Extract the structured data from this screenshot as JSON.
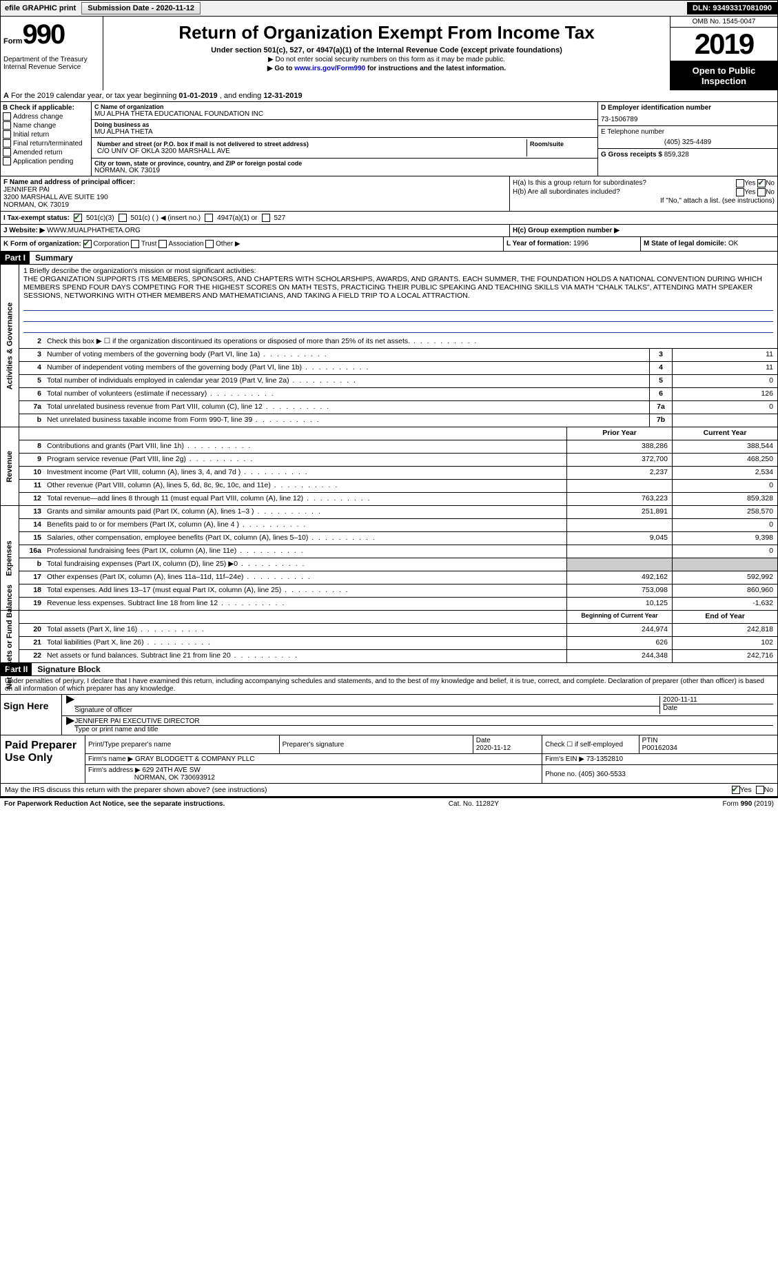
{
  "topbar": {
    "efile": "efile GRAPHIC print",
    "submission_label": "Submission Date - ",
    "submission_date": "2020-11-12",
    "dln_label": "DLN: ",
    "dln": "93493317081090"
  },
  "header": {
    "form_label": "Form",
    "form_number": "990",
    "dept": "Department of the Treasury\nInternal Revenue Service",
    "title": "Return of Organization Exempt From Income Tax",
    "subtitle": "Under section 501(c), 527, or 4947(a)(1) of the Internal Revenue Code (except private foundations)",
    "note1": "▶ Do not enter social security numbers on this form as it may be made public.",
    "note2_pre": "▶ Go to ",
    "note2_link": "www.irs.gov/Form990",
    "note2_post": " for instructions and the latest information.",
    "omb": "OMB No. 1545-0047",
    "year": "2019",
    "open_public": "Open to Public Inspection"
  },
  "row_a": {
    "prefix": "A",
    "text": " For the 2019 calendar year, or tax year beginning ",
    "begin": "01-01-2019",
    "mid": "   , and ending ",
    "end": "12-31-2019"
  },
  "col_b": {
    "label": "B Check if applicable:",
    "items": [
      "Address change",
      "Name change",
      "Initial return",
      "Final return/terminated",
      "Amended return",
      "Application pending"
    ]
  },
  "org": {
    "c_label": "C Name of organization",
    "name": "MU ALPHA THETA EDUCATIONAL FOUNDATION INC",
    "dba_label": "Doing business as",
    "dba": "MU ALPHA THETA",
    "addr_label": "Number and street (or P.O. box if mail is not delivered to street address)",
    "addr": "C/O UNIV OF OKLA 3200 MARSHALL AVE",
    "room_label": "Room/suite",
    "city_label": "City or town, state or province, country, and ZIP or foreign postal code",
    "city": "NORMAN, OK  73019"
  },
  "right": {
    "d_label": "D Employer identification number",
    "ein": "73-1506789",
    "e_label": "E Telephone number",
    "phone": "(405) 325-4489",
    "g_label": "G Gross receipts $ ",
    "gross": "859,328"
  },
  "officer": {
    "f_label": "F  Name and address of principal officer:",
    "name": "JENNIFER PAI",
    "addr1": "3200 MARSHALL AVE SUITE 190",
    "addr2": "NORMAN, OK  73019"
  },
  "h": {
    "ha_label": "H(a)  Is this a group return for subordinates?",
    "hb_label": "H(b)  Are all subordinates included?",
    "hb_note": "If \"No,\" attach a list. (see instructions)",
    "hc_label": "H(c)  Group exemption number ▶",
    "yes": "Yes",
    "no": "No"
  },
  "row_i_label": "I   Tax-exempt status:",
  "row_i": {
    "a": "501(c)(3)",
    "b": "501(c) (   ) ◀ (insert no.)",
    "c": "4947(a)(1) or",
    "d": "527"
  },
  "row_j": {
    "label": "J   Website: ▶",
    "val": "WWW.MUALPHATHETA.ORG"
  },
  "row_k": {
    "label": "K Form of organization:",
    "opts": [
      "Corporation",
      "Trust",
      "Association",
      "Other ▶"
    ],
    "l_label": "L Year of formation: ",
    "l_val": "1996",
    "m_label": "M State of legal domicile: ",
    "m_val": "OK"
  },
  "parts": {
    "p1": "Part I",
    "p1_title": "Summary",
    "p2": "Part II",
    "p2_title": "Signature Block"
  },
  "mission": {
    "label": "1   Briefly describe the organization's mission or most significant activities:",
    "text": "THE ORGANIZATION SUPPORTS ITS MEMBERS, SPONSORS, AND CHAPTERS WITH SCHOLARSHIPS, AWARDS, AND GRANTS. EACH SUMMER, THE FOUNDATION HOLDS A NATIONAL CONVENTION DURING WHICH MEMBERS SPEND FOUR DAYS COMPETING FOR THE HIGHEST SCORES ON MATH TESTS, PRACTICING THEIR PUBLIC SPEAKING AND TEACHING SKILLS VIA MATH \"CHALK TALKS\", ATTENDING MATH SPEAKER SESSIONS, NETWORKING WITH OTHER MEMBERS AND MATHEMATICIANS, AND TAKING A FIELD TRIP TO A LOCAL ATTRACTION."
  },
  "vert": {
    "gov": "Activities & Governance",
    "rev": "Revenue",
    "exp": "Expenses",
    "net": "Net Assets or Fund Balances"
  },
  "gov_lines": [
    {
      "n": "2",
      "t": "Check this box ▶ ☐  if the organization discontinued its operations or disposed of more than 25% of its net assets."
    },
    {
      "n": "3",
      "t": "Number of voting members of the governing body (Part VI, line 1a)",
      "box": "3",
      "v": "11"
    },
    {
      "n": "4",
      "t": "Number of independent voting members of the governing body (Part VI, line 1b)",
      "box": "4",
      "v": "11"
    },
    {
      "n": "5",
      "t": "Total number of individuals employed in calendar year 2019 (Part V, line 2a)",
      "box": "5",
      "v": "0"
    },
    {
      "n": "6",
      "t": "Total number of volunteers (estimate if necessary)",
      "box": "6",
      "v": "126"
    },
    {
      "n": "7a",
      "t": "Total unrelated business revenue from Part VIII, column (C), line 12",
      "box": "7a",
      "v": "0"
    },
    {
      "n": "b",
      "t": "Net unrelated business taxable income from Form 990-T, line 39",
      "box": "7b",
      "v": ""
    }
  ],
  "col_headers": {
    "prior": "Prior Year",
    "current": "Current Year"
  },
  "rev_lines": [
    {
      "n": "8",
      "t": "Contributions and grants (Part VIII, line 1h)",
      "p": "388,286",
      "c": "388,544"
    },
    {
      "n": "9",
      "t": "Program service revenue (Part VIII, line 2g)",
      "p": "372,700",
      "c": "468,250"
    },
    {
      "n": "10",
      "t": "Investment income (Part VIII, column (A), lines 3, 4, and 7d )",
      "p": "2,237",
      "c": "2,534"
    },
    {
      "n": "11",
      "t": "Other revenue (Part VIII, column (A), lines 5, 6d, 8c, 9c, 10c, and 11e)",
      "p": "",
      "c": "0"
    },
    {
      "n": "12",
      "t": "Total revenue—add lines 8 through 11 (must equal Part VIII, column (A), line 12)",
      "p": "763,223",
      "c": "859,328"
    }
  ],
  "exp_lines": [
    {
      "n": "13",
      "t": "Grants and similar amounts paid (Part IX, column (A), lines 1–3 )",
      "p": "251,891",
      "c": "258,570"
    },
    {
      "n": "14",
      "t": "Benefits paid to or for members (Part IX, column (A), line 4 )",
      "p": "",
      "c": "0"
    },
    {
      "n": "15",
      "t": "Salaries, other compensation, employee benefits (Part IX, column (A), lines 5–10)",
      "p": "9,045",
      "c": "9,398"
    },
    {
      "n": "16a",
      "t": "Professional fundraising fees (Part IX, column (A), line 11e)",
      "p": "",
      "c": "0"
    },
    {
      "n": "b",
      "t": "Total fundraising expenses (Part IX, column (D), line 25) ▶0",
      "p": "",
      "c": "",
      "shade": true
    },
    {
      "n": "17",
      "t": "Other expenses (Part IX, column (A), lines 11a–11d, 11f–24e)",
      "p": "492,162",
      "c": "592,992"
    },
    {
      "n": "18",
      "t": "Total expenses. Add lines 13–17 (must equal Part IX, column (A), line 25)",
      "p": "753,098",
      "c": "860,960"
    },
    {
      "n": "19",
      "t": "Revenue less expenses. Subtract line 18 from line 12",
      "p": "10,125",
      "c": "-1,632"
    }
  ],
  "net_headers": {
    "begin": "Beginning of Current Year",
    "end": "End of Year"
  },
  "net_lines": [
    {
      "n": "20",
      "t": "Total assets (Part X, line 16)",
      "p": "244,974",
      "c": "242,818"
    },
    {
      "n": "21",
      "t": "Total liabilities (Part X, line 26)",
      "p": "626",
      "c": "102"
    },
    {
      "n": "22",
      "t": "Net assets or fund balances. Subtract line 21 from line 20",
      "p": "244,348",
      "c": "242,716"
    }
  ],
  "sig": {
    "perjury": "Under penalties of perjury, I declare that I have examined this return, including accompanying schedules and statements, and to the best of my knowledge and belief, it is true, correct, and complete. Declaration of preparer (other than officer) is based on all information of which preparer has any knowledge.",
    "sign_here": "Sign Here",
    "sig_officer": "Signature of officer",
    "date": "Date",
    "sig_date": "2020-11-11",
    "name_title": "JENNIFER PAI  EXECUTIVE DIRECTOR",
    "type_name": "Type or print name and title"
  },
  "paid": {
    "label": "Paid Preparer Use Only",
    "h1": "Print/Type preparer's name",
    "h2": "Preparer's signature",
    "h3": "Date",
    "h3v": "2020-11-12",
    "h4": "Check ☐ if self-employed",
    "h5": "PTIN",
    "ptin": "P00162034",
    "firm_name_label": "Firm's name    ▶",
    "firm_name": "GRAY BLODGETT & COMPANY PLLC",
    "firm_ein_label": "Firm's EIN ▶",
    "firm_ein": "73-1352810",
    "firm_addr_label": "Firm's address ▶",
    "firm_addr1": "629 24TH AVE SW",
    "firm_addr2": "NORMAN, OK  730693912",
    "phone_label": "Phone no. ",
    "phone": "(405) 360-5533"
  },
  "discuss": {
    "text": "May the IRS discuss this return with the preparer shown above? (see instructions)",
    "yes": "Yes",
    "no": "No"
  },
  "footer": {
    "left": "For Paperwork Reduction Act Notice, see the separate instructions.",
    "mid": "Cat. No. 11282Y",
    "right_pre": "Form ",
    "right_form": "990",
    "right_post": " (2019)"
  }
}
